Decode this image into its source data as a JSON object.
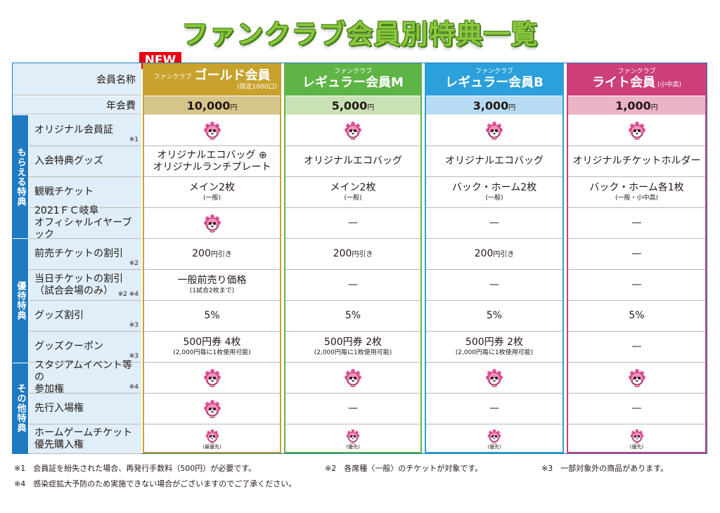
{
  "title": "ファンクラブ会員別特典一覧",
  "new_badge": "NEW",
  "header": {
    "member_name_label": "会員名称",
    "annual_fee_label": "年会費"
  },
  "plans": [
    {
      "prefix": "ファンクラブ",
      "name": "ゴールド会員",
      "note": "(限定1000口)",
      "fee_num": "10,000",
      "fee_unit": "円",
      "color": "#c8a22c",
      "fee_bg": "#d6c58a"
    },
    {
      "prefix": "ファンクラブ",
      "name": "レギュラー会員M",
      "note": "",
      "fee_num": "5,000",
      "fee_unit": "円",
      "color": "#5fb446",
      "fee_bg": "#c9e2b5"
    },
    {
      "prefix": "ファンクラブ",
      "name": "レギュラー会員B",
      "note": "",
      "fee_num": "3,000",
      "fee_unit": "円",
      "color": "#2ba0da",
      "fee_bg": "#b7dbf2"
    },
    {
      "prefix": "ファンクラブ",
      "name": "ライト会員",
      "note": "(小中高)",
      "fee_num": "1,000",
      "fee_unit": "円",
      "color": "#cc3f78",
      "fee_bg": "#eab3c6"
    }
  ],
  "sections": [
    {
      "label": "もらえる特典"
    },
    {
      "label": "優待特典"
    },
    {
      "label": "その他特典"
    }
  ],
  "rows": [
    {
      "label": "オリジナル会員証",
      "mark": "※1",
      "cells": [
        {
          "icon": "mascot-icon"
        },
        {
          "icon": "mascot-icon"
        },
        {
          "icon": "mascot-icon"
        },
        {
          "icon": "mascot-icon"
        }
      ]
    },
    {
      "label": "入会特典グッズ",
      "mark": "",
      "cells": [
        {
          "main": "オリジナルエコバッグ ⊕",
          "main2": "オリジナルランチプレート"
        },
        {
          "main": "オリジナルエコバッグ"
        },
        {
          "main": "オリジナルエコバッグ"
        },
        {
          "main": "オリジナルチケットホルダー"
        }
      ]
    },
    {
      "label": "観戦チケット",
      "mark": "",
      "cells": [
        {
          "main": "メイン2枚",
          "sub": "(一般)"
        },
        {
          "main": "メイン2枚",
          "sub": "(一般)"
        },
        {
          "main": "バック・ホーム2枚",
          "sub": "(一般)"
        },
        {
          "main": "バック・ホーム各1枚",
          "sub": "(一般・小中高)"
        }
      ]
    },
    {
      "label": "2021ＦＣ岐阜",
      "label2": "オフィシャルイヤーブック",
      "mark": "",
      "cells": [
        {
          "icon": "mascot-icon"
        },
        {
          "main": "—"
        },
        {
          "main": "—"
        },
        {
          "main": "—"
        }
      ]
    },
    {
      "label": "前売チケットの割引",
      "mark": "※2",
      "cells": [
        {
          "main": "200",
          "unit": "円引き"
        },
        {
          "main": "200",
          "unit": "円引き"
        },
        {
          "main": "200",
          "unit": "円引き"
        },
        {
          "main": "—"
        }
      ]
    },
    {
      "label": "当日チケットの割引",
      "label2": "（試合会場のみ）",
      "mark": "※2 ※4",
      "cells": [
        {
          "main": "一般前売り価格",
          "sub": "(1試合2枚まで)"
        },
        {
          "main": "—"
        },
        {
          "main": "—"
        },
        {
          "main": "—"
        }
      ]
    },
    {
      "label": "グッズ割引",
      "mark": "※3",
      "cells": [
        {
          "main": "5%"
        },
        {
          "main": "5%"
        },
        {
          "main": "5%"
        },
        {
          "main": "5%"
        }
      ]
    },
    {
      "label": "グッズクーポン",
      "mark": "※3",
      "cells": [
        {
          "main": "500円券 4枚",
          "sub": "(2,000円毎に1枚使用可能)"
        },
        {
          "main": "500円券 2枚",
          "sub": "(2,000円毎に1枚使用可能)"
        },
        {
          "main": "500円券 2枚",
          "sub": "(2,000円毎に1枚使用可能)"
        },
        {
          "main": "—"
        }
      ]
    },
    {
      "label": "スタジアムイベント等の",
      "label2": "参加権",
      "mark": "※4",
      "cells": [
        {
          "icon": "mascot-icon"
        },
        {
          "icon": "mascot-icon"
        },
        {
          "icon": "mascot-icon"
        },
        {
          "icon": "mascot-icon"
        }
      ]
    },
    {
      "label": "先行入場権",
      "mark": "",
      "cells": [
        {
          "icon": "mascot-icon"
        },
        {
          "main": "—"
        },
        {
          "main": "—"
        },
        {
          "main": "—"
        }
      ]
    },
    {
      "label": "ホームゲームチケット",
      "label2": "優先購入権",
      "mark": "",
      "cells": [
        {
          "icon": "mascot-icon",
          "caption": "(最優先)"
        },
        {
          "icon": "mascot-icon",
          "caption": "(優先)"
        },
        {
          "icon": "mascot-icon",
          "caption": "(優先)"
        },
        {
          "icon": "mascot-icon",
          "caption": "(優先)"
        }
      ]
    }
  ],
  "footnotes": {
    "n1": "※1　会員証を紛失された場合、再発行手数料（500円）が必要です。",
    "n2": "※2　各席種〈一般〉のチケットが対象です。",
    "n3": "※3　一部対象外の商品があります。",
    "n4": "※4　感染症拡大予防のため実施できない場合がございますのでご了承ください。"
  },
  "colors": {
    "section_bg": "#1f7ac0",
    "label_bg": "#dfeef9",
    "title_green": "#8cc63f"
  }
}
